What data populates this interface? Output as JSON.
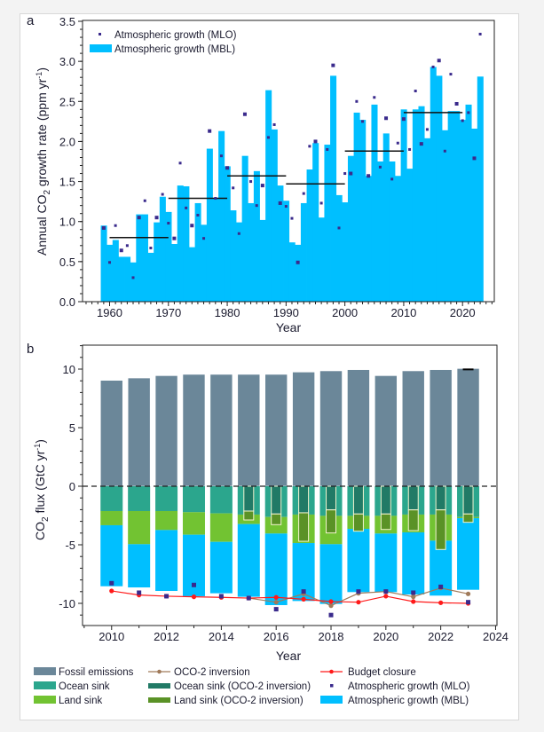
{
  "chart_data": [
    {
      "panel": "a",
      "type": "bar",
      "xlabel": "Year",
      "ylabel": "Annual CO2 growth rate (ppm yr-1)",
      "ylim": [
        0,
        3.5
      ],
      "yticks": [
        "0.0",
        "0.5",
        "1.0",
        "1.5",
        "2.0",
        "2.5",
        "3.0",
        "3.5"
      ],
      "xticks": [
        "1960",
        "1970",
        "1980",
        "1990",
        "2000",
        "2010",
        "2020"
      ],
      "legend": {
        "position": "top-left",
        "items": [
          "Atmospheric growth (MLO)",
          "Atmospheric growth (MBL)"
        ]
      },
      "x": [
        1959,
        1960,
        1961,
        1962,
        1963,
        1964,
        1965,
        1966,
        1967,
        1968,
        1969,
        1970,
        1971,
        1972,
        1973,
        1974,
        1975,
        1976,
        1977,
        1978,
        1979,
        1980,
        1981,
        1982,
        1983,
        1984,
        1985,
        1986,
        1987,
        1988,
        1989,
        1990,
        1991,
        1992,
        1993,
        1994,
        1995,
        1996,
        1997,
        1998,
        1999,
        2000,
        2001,
        2002,
        2003,
        2004,
        2005,
        2006,
        2007,
        2008,
        2009,
        2010,
        2011,
        2012,
        2013,
        2014,
        2015,
        2016,
        2017,
        2018,
        2019,
        2020,
        2021,
        2022,
        2023
      ],
      "series": [
        {
          "name": "Atmospheric growth (MBL)",
          "kind": "bar",
          "color": "#00bfff",
          "values": [
            0.95,
            0.71,
            0.77,
            0.56,
            0.56,
            0.49,
            1.09,
            1.09,
            0.61,
            0.99,
            1.31,
            1.12,
            0.72,
            1.45,
            1.44,
            0.68,
            1.23,
            0.96,
            1.91,
            1.29,
            2.13,
            1.69,
            1.14,
            0.99,
            1.82,
            1.23,
            1.63,
            1.02,
            2.64,
            2.15,
            1.45,
            1.26,
            0.74,
            0.71,
            1.23,
            1.65,
            1.98,
            1.05,
            1.96,
            2.82,
            1.33,
            1.24,
            1.82,
            2.36,
            2.27,
            1.57,
            2.46,
            1.75,
            2.1,
            1.75,
            1.57,
            2.4,
            1.66,
            2.4,
            2.44,
            2.04,
            2.93,
            2.82,
            2.14,
            2.38,
            2.38,
            2.27,
            2.46,
            2.16,
            2.81
          ]
        },
        {
          "name": "Atmospheric growth (MLO)",
          "kind": "marker",
          "color": "#3a2a8c",
          "values": [
            0.92,
            0.49,
            0.95,
            0.64,
            0.7,
            0.3,
            1.05,
            1.26,
            0.67,
            1.05,
            1.34,
            0.98,
            0.79,
            1.73,
            1.17,
            0.95,
            1.08,
            0.79,
            2.13,
            1.29,
            1.82,
            1.67,
            1.42,
            0.85,
            2.34,
            1.5,
            1.2,
            1.45,
            2.05,
            2.21,
            1.23,
            1.19,
            1.04,
            0.49,
            1.35,
            1.94,
            2.0,
            1.23,
            1.9,
            2.95,
            0.92,
            1.6,
            1.6,
            2.5,
            2.25,
            1.57,
            2.55,
            1.68,
            2.29,
            1.53,
            1.98,
            2.28,
            1.9,
            2.63,
            1.97,
            2.15,
            2.93,
            3.01,
            1.88,
            2.84,
            2.47,
            2.26,
            2.36,
            1.79,
            3.34
          ]
        }
      ],
      "decadal_means": [
        {
          "start": 1960,
          "end": 1970,
          "value": 0.8
        },
        {
          "start": 1970,
          "end": 1980,
          "value": 1.29
        },
        {
          "start": 1980,
          "end": 1990,
          "value": 1.57
        },
        {
          "start": 1990,
          "end": 2000,
          "value": 1.47
        },
        {
          "start": 2000,
          "end": 2010,
          "value": 1.88
        },
        {
          "start": 2010,
          "end": 2020,
          "value": 2.36
        }
      ]
    },
    {
      "panel": "b",
      "type": "bar",
      "xlabel": "Year",
      "ylabel": "CO2 flux (GtC yr-1)",
      "ylim": [
        -12,
        12
      ],
      "yticks": [
        "-10",
        "-5",
        "0",
        "5",
        "10"
      ],
      "xticks": [
        "2010",
        "2012",
        "2014",
        "2016",
        "2018",
        "2020",
        "2022",
        "2024"
      ],
      "legend": {
        "position": "bottom",
        "items": [
          "Fossil emissions",
          "OCO-2 inversion",
          "Budget closure",
          "Ocean sink",
          "Ocean sink (OCO-2 inversion)",
          "Atmospheric growth (MLO)",
          "Land sink",
          "Land sink (OCO-2 inversion)",
          "Atmospheric growth (MBL)"
        ]
      },
      "x": [
        2010,
        2011,
        2012,
        2013,
        2014,
        2015,
        2016,
        2017,
        2018,
        2019,
        2020,
        2021,
        2022,
        2023
      ],
      "series": [
        {
          "name": "Fossil emissions",
          "kind": "bar",
          "color": "#6b8799",
          "values": [
            9.04,
            9.24,
            9.44,
            9.55,
            9.55,
            9.55,
            9.55,
            9.75,
            9.85,
            9.95,
            9.44,
            9.85,
            9.95,
            10.05
          ]
        },
        {
          "name": "Ocean sink",
          "kind": "stack",
          "color": "#2ba68d",
          "values": [
            -2.12,
            -2.12,
            -2.12,
            -2.22,
            -2.32,
            -2.42,
            -2.63,
            -2.42,
            -2.53,
            -2.53,
            -2.53,
            -2.42,
            -2.42,
            -2.63
          ]
        },
        {
          "name": "Land sink",
          "kind": "stack",
          "color": "#72c332",
          "values": [
            -1.21,
            -2.83,
            -1.62,
            -1.92,
            -2.43,
            -0.81,
            -1.41,
            -2.43,
            -2.42,
            -1.11,
            -1.51,
            -1.52,
            -2.23,
            -0.1
          ]
        },
        {
          "name": "Atmospheric growth (MBL)",
          "kind": "stack",
          "color": "#00bfff",
          "values": [
            -5.21,
            -3.69,
            -5.2,
            -5.25,
            -4.39,
            -6.21,
            -6.11,
            -4.95,
            -5.1,
            -5.4,
            -5.0,
            -5.3,
            -4.69,
            -6.11
          ]
        },
        {
          "name": "Ocean sink (OCO-2 inversion)",
          "kind": "box",
          "color": "#217a66",
          "values": [
            null,
            null,
            null,
            null,
            null,
            -2.12,
            -2.37,
            -2.27,
            -2.02,
            -2.37,
            -2.37,
            -2.02,
            -2.02,
            -2.37
          ]
        },
        {
          "name": "Land sink (OCO-2 inversion)",
          "kind": "box",
          "color": "#5a9226",
          "values": [
            null,
            null,
            null,
            null,
            null,
            -0.76,
            -0.91,
            -2.43,
            -1.97,
            -1.47,
            -1.32,
            -1.77,
            -3.38,
            -0.71
          ]
        },
        {
          "name": "Budget closure",
          "kind": "line",
          "color": "#ff1a1a",
          "values": [
            -8.94,
            -9.29,
            -9.39,
            -9.44,
            -9.49,
            -9.55,
            -9.49,
            -9.65,
            -9.85,
            -9.9,
            -9.39,
            -9.85,
            -9.95,
            -10.0
          ]
        },
        {
          "name": "OCO-2 inversion",
          "kind": "line",
          "color": "#a07a5a",
          "values": [
            null,
            null,
            null,
            null,
            null,
            -9.55,
            -9.9,
            -9.19,
            -10.2,
            -9.14,
            -8.99,
            -9.44,
            -8.69,
            -9.19
          ]
        },
        {
          "name": "Atmospheric growth (MLO)",
          "kind": "marker",
          "color": "#3a2a8c",
          "values": [
            -8.28,
            -9.09,
            -9.39,
            -8.43,
            -9.39,
            -9.55,
            -10.5,
            -8.99,
            -11.0,
            -8.99,
            -8.99,
            -9.09,
            -8.59,
            -9.9
          ]
        }
      ]
    }
  ],
  "panel_labels": {
    "a": "a",
    "b": "b"
  },
  "axes": {
    "a_ylabel_main": "Annual CO",
    "a_ylabel_sub": "2",
    "a_ylabel_rest": " growth rate (ppm yr",
    "a_ylabel_sup": "-1",
    "a_ylabel_end": ")",
    "b_ylabel_main": "CO",
    "b_ylabel_sub": "2",
    "b_ylabel_rest": " flux (GtC yr",
    "b_ylabel_sup": "-1",
    "b_ylabel_end": ")",
    "xlabel": "Year"
  }
}
